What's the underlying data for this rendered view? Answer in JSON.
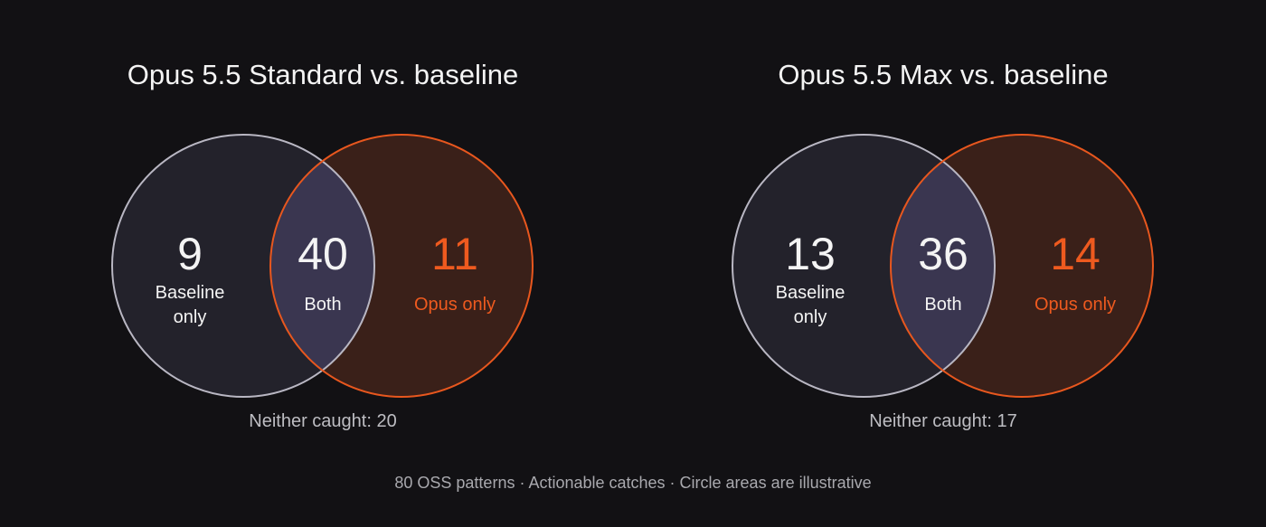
{
  "colors": {
    "background": "#121114",
    "baseline_stroke": "#b9b7c3",
    "baseline_fill": "#23222b",
    "opus_stroke": "#e8571e",
    "opus_fill": "#3a2019",
    "overlap_fill": "#3a3650",
    "text_primary": "#f4f4f4",
    "text_accent": "#ee5a1f",
    "text_muted": "#bdbdc2"
  },
  "panels": [
    {
      "title": "Opus 5.5 Standard vs. baseline",
      "baseline_only": {
        "value": "9",
        "label_line1": "Baseline",
        "label_line2": "only"
      },
      "both": {
        "value": "40",
        "label": "Both"
      },
      "opus_only": {
        "value": "11",
        "label": "Opus only"
      },
      "neither": "Neither caught: 20"
    },
    {
      "title": "Opus 5.5 Max vs. baseline",
      "baseline_only": {
        "value": "13",
        "label_line1": "Baseline",
        "label_line2": "only"
      },
      "both": {
        "value": "36",
        "label": "Both"
      },
      "opus_only": {
        "value": "14",
        "label": "Opus only"
      },
      "neither": "Neither caught: 17"
    }
  ],
  "footnote": "80 OSS patterns · Actionable catches · Circle areas are illustrative"
}
